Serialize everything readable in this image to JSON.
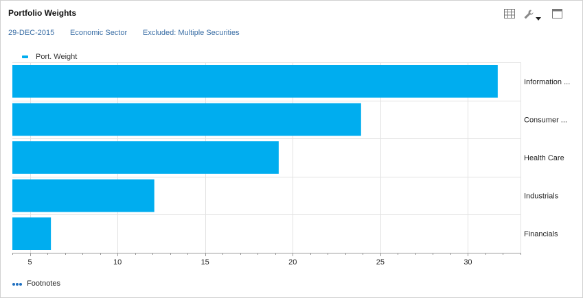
{
  "panel": {
    "title": "Portfolio Weights",
    "date": "29-DEC-2015",
    "grouping": "Economic Sector",
    "exclusion": "Excluded: Multiple Securities",
    "footnotes_label": "Footnotes"
  },
  "toolbar": {
    "icons": [
      "grid-view-icon",
      "wrench-icon",
      "dropdown-caret-icon",
      "maximize-icon"
    ]
  },
  "colors": {
    "bar": "#00adef",
    "link": "#3a6ea5",
    "grid": "#e2e2e2"
  },
  "chart_data": {
    "type": "bar",
    "orientation": "horizontal",
    "title": "",
    "categories": [
      "Information ...",
      "Consumer ...",
      "Health Care",
      "Industrials",
      "Financials"
    ],
    "series": [
      {
        "name": "Port. Weight",
        "values": [
          31.7,
          23.9,
          19.2,
          12.1,
          6.2
        ]
      }
    ],
    "xlim": [
      4,
      33
    ],
    "xticks": [
      5,
      10,
      15,
      20,
      25,
      30
    ],
    "legend": "top-left",
    "grid": true,
    "category_axis_side": "right"
  }
}
